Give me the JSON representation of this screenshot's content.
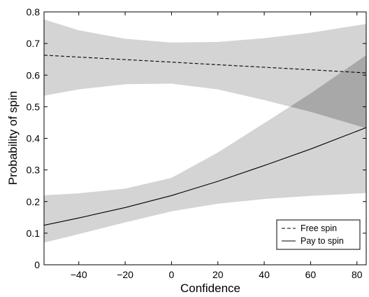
{
  "chart_data": {
    "type": "line",
    "xlabel": "Confidence",
    "ylabel": "Probability of spin",
    "xlim": [
      -55,
      84
    ],
    "ylim": [
      0,
      0.8
    ],
    "xticks": [
      -40,
      -20,
      0,
      20,
      40,
      60,
      80
    ],
    "yticks": [
      0,
      0.1,
      0.2,
      0.3,
      0.4,
      0.5,
      0.6,
      0.7,
      0.8
    ],
    "x_tick_labels": [
      "−40",
      "−20",
      "0",
      "20",
      "40",
      "60",
      "80"
    ],
    "y_tick_labels": [
      "0",
      "0.1",
      "0.2",
      "0.3",
      "0.4",
      "0.5",
      "0.6",
      "0.7",
      "0.8"
    ],
    "grid": false,
    "legend_position": "bottom-right",
    "band_color": "#d4d4d4",
    "overlap_color": "#a8a8a8",
    "series": [
      {
        "name": "Free spin",
        "style": "dashed",
        "x": [
          -55,
          -40,
          -20,
          0,
          20,
          40,
          60,
          84
        ],
        "y": [
          0.663,
          0.657,
          0.649,
          0.641,
          0.633,
          0.625,
          0.617,
          0.607
        ],
        "lower": [
          0.535,
          0.555,
          0.571,
          0.573,
          0.555,
          0.521,
          0.484,
          0.432
        ],
        "upper": [
          0.776,
          0.742,
          0.715,
          0.703,
          0.705,
          0.717,
          0.734,
          0.762
        ]
      },
      {
        "name": "Pay to spin",
        "style": "solid",
        "x": [
          -55,
          -40,
          -20,
          0,
          20,
          40,
          60,
          84
        ],
        "y": [
          0.125,
          0.148,
          0.181,
          0.219,
          0.264,
          0.314,
          0.366,
          0.434
        ],
        "lower": [
          0.07,
          0.097,
          0.134,
          0.169,
          0.193,
          0.208,
          0.218,
          0.227
        ],
        "upper": [
          0.22,
          0.226,
          0.241,
          0.275,
          0.355,
          0.448,
          0.542,
          0.663
        ]
      }
    ]
  }
}
